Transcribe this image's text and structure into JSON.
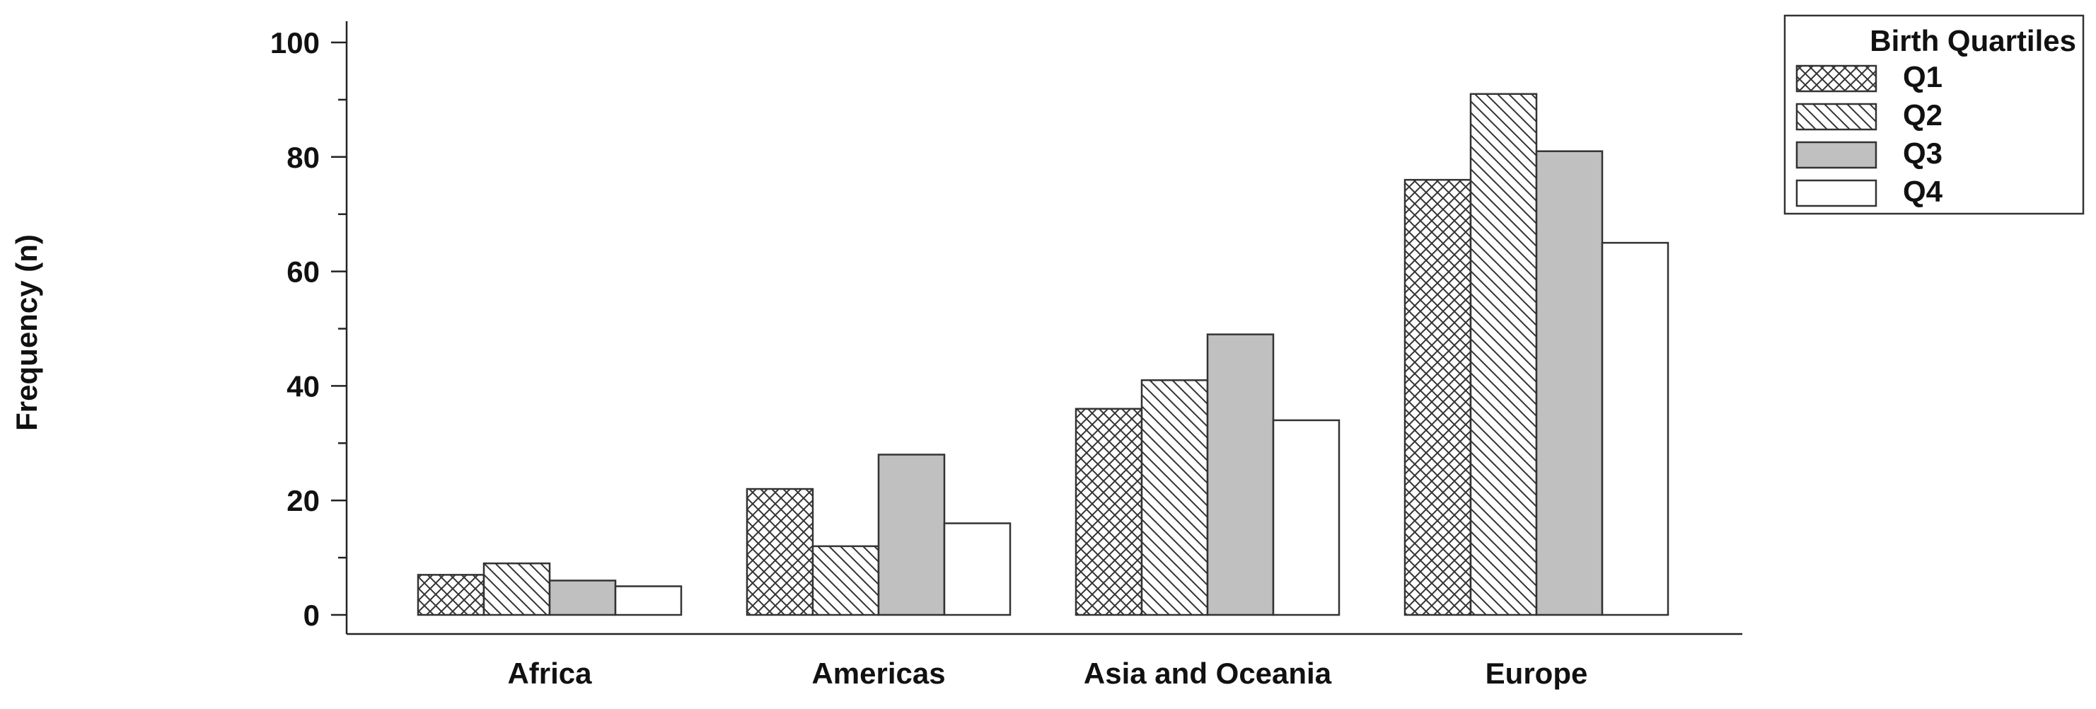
{
  "chart_data": {
    "type": "bar",
    "categories": [
      "Africa",
      "Americas",
      "Asia and Oceania",
      "Europe"
    ],
    "series": [
      {
        "name": "Q1",
        "values": [
          7,
          22,
          36,
          76
        ],
        "pattern": "crosshatch"
      },
      {
        "name": "Q2",
        "values": [
          9,
          12,
          41,
          91
        ],
        "pattern": "diagonal"
      },
      {
        "name": "Q3",
        "values": [
          6,
          28,
          49,
          81
        ],
        "pattern": "solid-gray",
        "color": "#c0c0c0"
      },
      {
        "name": "Q4",
        "values": [
          5,
          16,
          34,
          65
        ],
        "pattern": "solid-white",
        "color": "#ffffff"
      }
    ],
    "ylabel": "Frequency (n)",
    "xlabel": "",
    "ylim": [
      0,
      100
    ],
    "yticks": [
      0,
      20,
      40,
      60,
      80,
      100
    ],
    "legend": {
      "title": "Birth Quartiles",
      "placement": "top-right"
    },
    "grid": false
  }
}
